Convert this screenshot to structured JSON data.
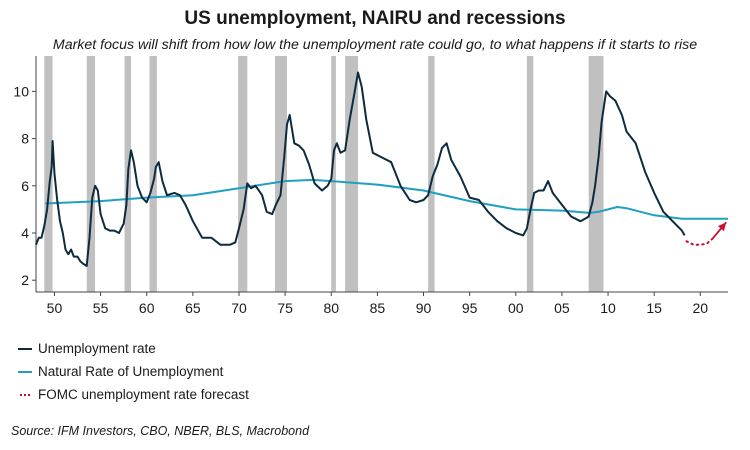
{
  "chart_data": {
    "type": "line",
    "title": "US unemployment, NAIRU and recessions",
    "subtitle": "Market focus will shift from how low the unemployment rate could go, to what happens if it starts to rise",
    "source": "Source: IFM Investors, CBO, NBER, BLS, Macrobond",
    "xlim": [
      1948,
      2023
    ],
    "ylim": [
      1.5,
      11.5
    ],
    "xticks": [
      {
        "value": 1950,
        "label": "50"
      },
      {
        "value": 1955,
        "label": "55"
      },
      {
        "value": 1960,
        "label": "60"
      },
      {
        "value": 1965,
        "label": "65"
      },
      {
        "value": 1970,
        "label": "70"
      },
      {
        "value": 1975,
        "label": "75"
      },
      {
        "value": 1980,
        "label": "80"
      },
      {
        "value": 1985,
        "label": "85"
      },
      {
        "value": 1990,
        "label": "90"
      },
      {
        "value": 1995,
        "label": "95"
      },
      {
        "value": 2000,
        "label": "00"
      },
      {
        "value": 2005,
        "label": "05"
      },
      {
        "value": 2010,
        "label": "10"
      },
      {
        "value": 2015,
        "label": "15"
      },
      {
        "value": 2020,
        "label": "20"
      }
    ],
    "yticks": [
      {
        "value": 2,
        "label": "2"
      },
      {
        "value": 4,
        "label": "4"
      },
      {
        "value": 6,
        "label": "6"
      },
      {
        "value": 8,
        "label": "8"
      },
      {
        "value": 10,
        "label": "10"
      }
    ],
    "recessions": [
      [
        1948.9,
        1949.8
      ],
      [
        1953.5,
        1954.4
      ],
      [
        1957.6,
        1958.3
      ],
      [
        1960.3,
        1961.1
      ],
      [
        1969.9,
        1970.9
      ],
      [
        1973.9,
        1975.2
      ],
      [
        1980.0,
        1980.5
      ],
      [
        1981.5,
        1982.9
      ],
      [
        1990.5,
        1991.2
      ],
      [
        2001.2,
        2001.9
      ],
      [
        2007.9,
        2009.5
      ]
    ],
    "colors": {
      "unemployment": "#0d2b3e",
      "nairu": "#1fa0c0",
      "forecast": "#c8102e",
      "recession": "#c0c0c0"
    },
    "legend": [
      {
        "key": "unemployment",
        "label": "Unemployment rate"
      },
      {
        "key": "nairu",
        "label": "Natural Rate of Unemployment"
      },
      {
        "key": "forecast",
        "label": "FOMC unemployment rate forecast"
      }
    ],
    "series": [
      {
        "name": "Unemployment rate",
        "x": [
          1948.0,
          1948.3,
          1948.6,
          1948.9,
          1949.2,
          1949.5,
          1949.7,
          1949.8,
          1950.0,
          1950.3,
          1950.6,
          1950.9,
          1951.2,
          1951.5,
          1951.8,
          1952.1,
          1952.5,
          1952.8,
          1953.1,
          1953.5,
          1953.8,
          1954.1,
          1954.4,
          1954.7,
          1955.0,
          1955.5,
          1956.0,
          1956.5,
          1957.0,
          1957.5,
          1957.8,
          1958.0,
          1958.3,
          1958.6,
          1959.0,
          1959.5,
          1960.0,
          1960.4,
          1960.8,
          1961.0,
          1961.3,
          1961.7,
          1962.2,
          1963.0,
          1963.6,
          1964.2,
          1965.0,
          1966.0,
          1967.0,
          1968.0,
          1969.0,
          1969.6,
          1970.0,
          1970.5,
          1970.9,
          1971.3,
          1971.8,
          1972.5,
          1973.0,
          1973.6,
          1974.0,
          1974.5,
          1974.9,
          1975.2,
          1975.5,
          1976.0,
          1976.5,
          1977.0,
          1977.6,
          1978.2,
          1979.0,
          1979.6,
          1980.0,
          1980.3,
          1980.6,
          1981.0,
          1981.5,
          1982.0,
          1982.5,
          1982.9,
          1983.3,
          1983.8,
          1984.5,
          1985.5,
          1986.5,
          1987.5,
          1988.5,
          1989.2,
          1990.0,
          1990.5,
          1991.0,
          1991.5,
          1992.0,
          1992.5,
          1993.0,
          1994.0,
          1995.0,
          1996.0,
          1997.0,
          1998.0,
          1999.0,
          2000.0,
          2000.8,
          2001.2,
          2001.6,
          2002.0,
          2002.5,
          2003.0,
          2003.5,
          2004.0,
          2005.0,
          2006.0,
          2007.0,
          2007.5,
          2007.9,
          2008.3,
          2008.6,
          2009.0,
          2009.3,
          2009.6,
          2009.8,
          2010.2,
          2010.8,
          2011.5,
          2012.0,
          2013.0,
          2014.0,
          2015.0,
          2016.0,
          2016.5,
          2017.0,
          2017.5,
          2018.0,
          2018.3
        ],
        "values": [
          3.5,
          3.8,
          3.8,
          4.3,
          5.0,
          6.2,
          6.8,
          7.9,
          6.5,
          5.4,
          4.5,
          4.0,
          3.3,
          3.1,
          3.3,
          3.0,
          3.0,
          2.8,
          2.7,
          2.6,
          3.8,
          5.5,
          6.0,
          5.8,
          4.8,
          4.2,
          4.1,
          4.1,
          4.0,
          4.4,
          5.2,
          6.7,
          7.5,
          7.0,
          6.0,
          5.5,
          5.3,
          5.7,
          6.3,
          6.8,
          7.0,
          6.2,
          5.6,
          5.7,
          5.6,
          5.2,
          4.5,
          3.8,
          3.8,
          3.5,
          3.5,
          3.6,
          4.2,
          5.0,
          6.1,
          5.9,
          6.0,
          5.6,
          4.9,
          4.8,
          5.2,
          5.6,
          7.2,
          8.6,
          9.0,
          7.8,
          7.7,
          7.5,
          6.9,
          6.1,
          5.8,
          6.0,
          6.3,
          7.5,
          7.8,
          7.4,
          7.5,
          8.8,
          9.9,
          10.8,
          10.2,
          8.8,
          7.4,
          7.2,
          7.0,
          6.0,
          5.4,
          5.3,
          5.4,
          5.6,
          6.4,
          6.9,
          7.6,
          7.8,
          7.1,
          6.4,
          5.5,
          5.4,
          4.9,
          4.5,
          4.2,
          4.0,
          3.9,
          4.2,
          5.0,
          5.7,
          5.8,
          5.8,
          6.2,
          5.7,
          5.2,
          4.7,
          4.5,
          4.6,
          4.7,
          5.3,
          6.0,
          7.3,
          8.7,
          9.5,
          10.0,
          9.8,
          9.6,
          9.0,
          8.3,
          7.8,
          6.6,
          5.7,
          4.9,
          4.7,
          4.5,
          4.3,
          4.1,
          3.9
        ]
      },
      {
        "name": "Natural Rate of Unemployment",
        "x": [
          1949,
          1955,
          1960,
          1965,
          1970,
          1975,
          1978,
          1980,
          1985,
          1990,
          1995,
          2000,
          2005,
          2008,
          2009,
          2010,
          2011,
          2012,
          2015,
          2018,
          2023
        ],
        "values": [
          5.25,
          5.35,
          5.5,
          5.6,
          5.9,
          6.2,
          6.25,
          6.2,
          6.05,
          5.8,
          5.35,
          5.0,
          4.95,
          4.85,
          4.9,
          5.0,
          5.1,
          5.05,
          4.75,
          4.6,
          4.6
        ]
      },
      {
        "name": "FOMC unemployment rate forecast",
        "x": [
          2018.5,
          2019.3,
          2020.0,
          2020.7,
          2021.3
        ],
        "values": [
          3.65,
          3.5,
          3.5,
          3.55,
          3.75
        ]
      }
    ]
  }
}
